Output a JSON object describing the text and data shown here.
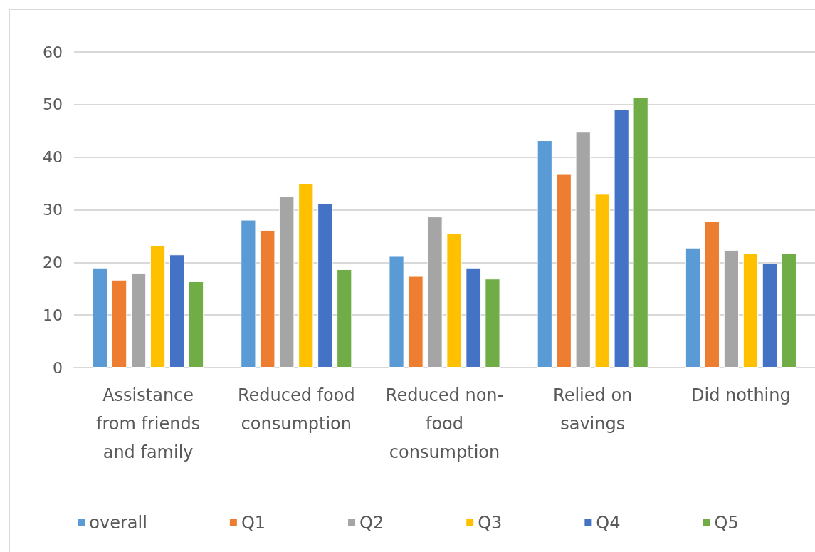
{
  "chart_data": {
    "type": "bar",
    "categories": [
      "Assistance from friends and family",
      "Reduced food consumption",
      "Reduced non-food consumption",
      "Relied on savings",
      "Did nothing"
    ],
    "series": [
      {
        "name": "overall",
        "color": "#5b9bd5",
        "values": [
          19.0,
          28.1,
          21.2,
          43.2,
          22.8
        ]
      },
      {
        "name": "Q1",
        "color": "#ed7d31",
        "values": [
          16.7,
          26.1,
          17.4,
          36.9,
          27.9
        ]
      },
      {
        "name": "Q2",
        "color": "#a5a5a5",
        "values": [
          18.0,
          32.5,
          28.7,
          44.8,
          22.3
        ]
      },
      {
        "name": "Q3",
        "color": "#ffc000",
        "values": [
          23.3,
          35.0,
          25.6,
          33.0,
          21.8
        ]
      },
      {
        "name": "Q4",
        "color": "#4472c4",
        "values": [
          21.5,
          31.2,
          19.0,
          49.1,
          19.8
        ]
      },
      {
        "name": "Q5",
        "color": "#70ad47",
        "values": [
          16.4,
          18.7,
          16.9,
          51.4,
          21.8
        ]
      }
    ],
    "ylim": [
      0,
      60
    ],
    "yticks": [
      0,
      10,
      20,
      30,
      40,
      50,
      60
    ],
    "grid": "y",
    "legend": "bottom"
  }
}
